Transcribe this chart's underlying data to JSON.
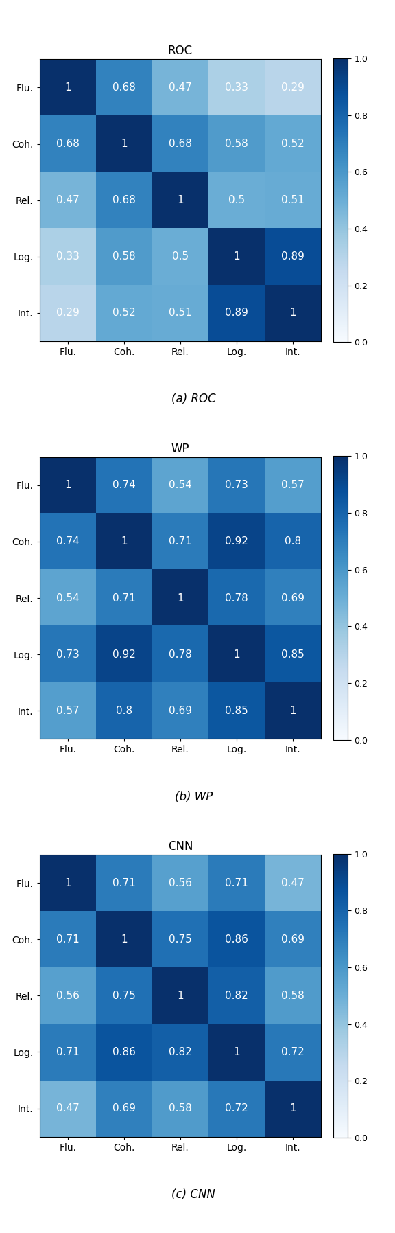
{
  "labels": [
    "Flu.",
    "Coh.",
    "Rel.",
    "Log.",
    "Int."
  ],
  "matrices": {
    "ROC": [
      [
        1.0,
        0.68,
        0.47,
        0.33,
        0.29
      ],
      [
        0.68,
        1.0,
        0.68,
        0.58,
        0.52
      ],
      [
        0.47,
        0.68,
        1.0,
        0.5,
        0.51
      ],
      [
        0.33,
        0.58,
        0.5,
        1.0,
        0.89
      ],
      [
        0.29,
        0.52,
        0.51,
        0.89,
        1.0
      ]
    ],
    "WP": [
      [
        1.0,
        0.74,
        0.54,
        0.73,
        0.57
      ],
      [
        0.74,
        1.0,
        0.71,
        0.92,
        0.8
      ],
      [
        0.54,
        0.71,
        1.0,
        0.78,
        0.69
      ],
      [
        0.73,
        0.92,
        0.78,
        1.0,
        0.85
      ],
      [
        0.57,
        0.8,
        0.69,
        0.85,
        1.0
      ]
    ],
    "CNN": [
      [
        1.0,
        0.71,
        0.56,
        0.71,
        0.47
      ],
      [
        0.71,
        1.0,
        0.75,
        0.86,
        0.69
      ],
      [
        0.56,
        0.75,
        1.0,
        0.82,
        0.58
      ],
      [
        0.71,
        0.86,
        0.82,
        1.0,
        0.72
      ],
      [
        0.47,
        0.69,
        0.58,
        0.72,
        1.0
      ]
    ]
  },
  "subtitles": [
    "ROC",
    "WP",
    "CNN"
  ],
  "captions": [
    "(a) ROC",
    "(b) WP",
    "(c) CNN"
  ],
  "vmin": 0.0,
  "vmax": 1.0,
  "cmap": "Blues",
  "text_color": "white",
  "font_size_title": 12,
  "font_size_annot": 11,
  "font_size_caption": 12,
  "font_size_ticks": 10,
  "cbar_tick_fontsize": 9
}
